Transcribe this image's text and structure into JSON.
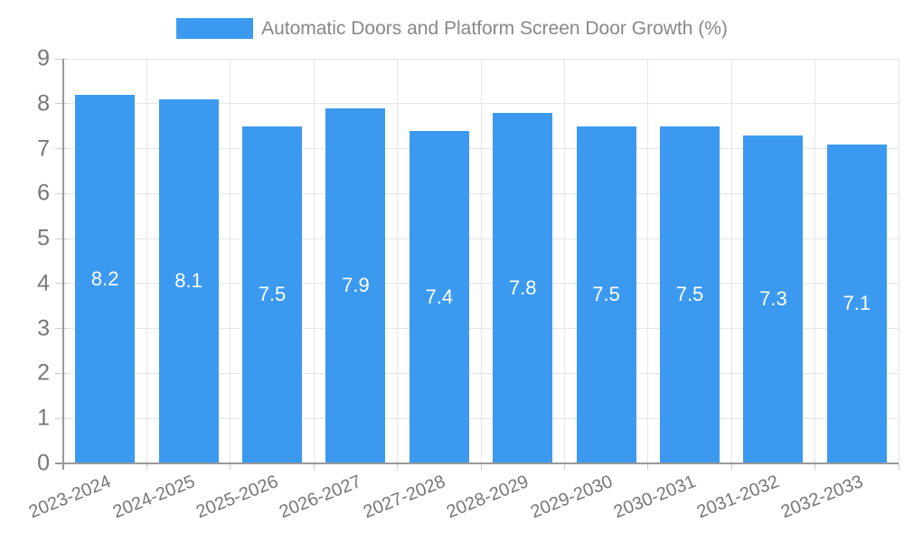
{
  "legend": {
    "swatch_color": "#3b9af0",
    "label": "Automatic Doors and Platform Screen Door Growth (%)"
  },
  "chart_data": {
    "type": "bar",
    "title": "Automatic Doors and Platform Screen Door Growth (%)",
    "categories": [
      "2023-2024",
      "2024-2025",
      "2025-2026",
      "2026-2027",
      "2027-2028",
      "2028-2029",
      "2029-2030",
      "2030-2031",
      "2031-2032",
      "2032-2033"
    ],
    "values": [
      8.2,
      8.1,
      7.5,
      7.9,
      7.4,
      7.8,
      7.5,
      7.5,
      7.3,
      7.1
    ],
    "bar_labels": [
      "8.2",
      "8.1",
      "7.5",
      "7.9",
      "7.4",
      "7.8",
      "7.5",
      "7.5",
      "7.3",
      "7.1"
    ],
    "xlabel": "",
    "ylabel": "",
    "ylim": [
      0,
      9
    ],
    "yticks": [
      0,
      1,
      2,
      3,
      4,
      5,
      6,
      7,
      8,
      9
    ],
    "grid": true,
    "legend_position": "top",
    "x_label_rotation_deg": -22,
    "colors": {
      "bar": "#3b9af0",
      "bar_label": "#ffffff",
      "axis": "#999999",
      "grid": "#e6e6e6",
      "tick": "#cccccc",
      "axis_text": "#777777",
      "legend_text": "#888888"
    }
  }
}
